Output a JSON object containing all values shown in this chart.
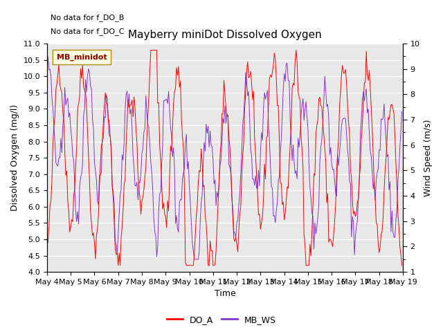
{
  "title": "Mayberry miniDot Dissolved Oxygen",
  "xlabel": "Time",
  "ylabel_left": "Dissolved Oxygen (mg/l)",
  "ylabel_right": "Wind Speed (m/s)",
  "annotation_lines": [
    "No data for f_DO_B",
    "No data for f_DO_C"
  ],
  "legend_box_text": "MB_minidot",
  "legend_entries": [
    "DO_A",
    "MB_WS"
  ],
  "do_color": "#ff0000",
  "ws_color": "#8833cc",
  "ylim_left": [
    4.0,
    11.0
  ],
  "ylim_right": [
    1.0,
    10.0
  ],
  "yticks_left": [
    4.0,
    4.5,
    5.0,
    5.5,
    6.0,
    6.5,
    7.0,
    7.5,
    8.0,
    8.5,
    9.0,
    9.5,
    10.0,
    10.5,
    11.0
  ],
  "yticks_right": [
    1.0,
    2.0,
    3.0,
    4.0,
    5.0,
    6.0,
    7.0,
    8.0,
    9.0,
    10.0
  ],
  "bg_color": "#e8e8e8",
  "grid_color": "white",
  "figsize": [
    6.4,
    4.8
  ],
  "dpi": 100,
  "title_fontsize": 11,
  "axis_label_fontsize": 9,
  "tick_fontsize": 8,
  "annot_fontsize": 8
}
